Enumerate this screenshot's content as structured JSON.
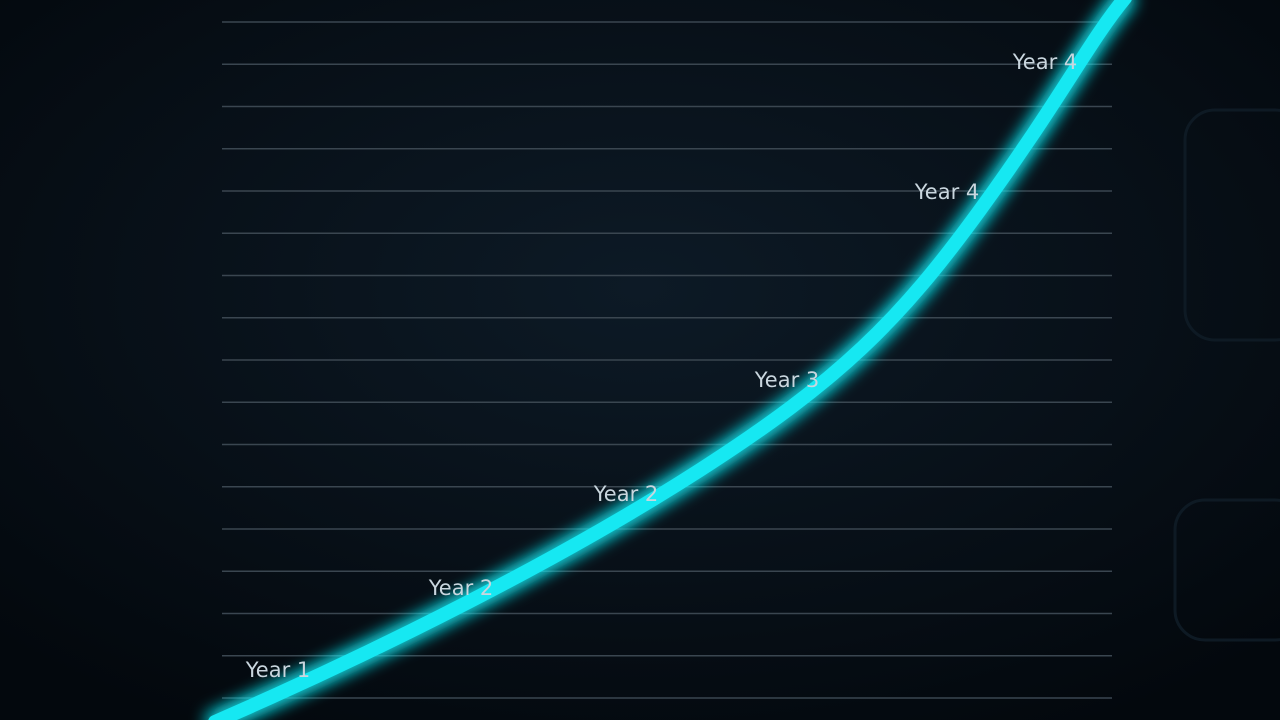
{
  "labels": [
    "Year 1",
    "Year 2",
    "Year 2",
    "Year 3",
    "Year 4",
    "Year 4"
  ]
}
